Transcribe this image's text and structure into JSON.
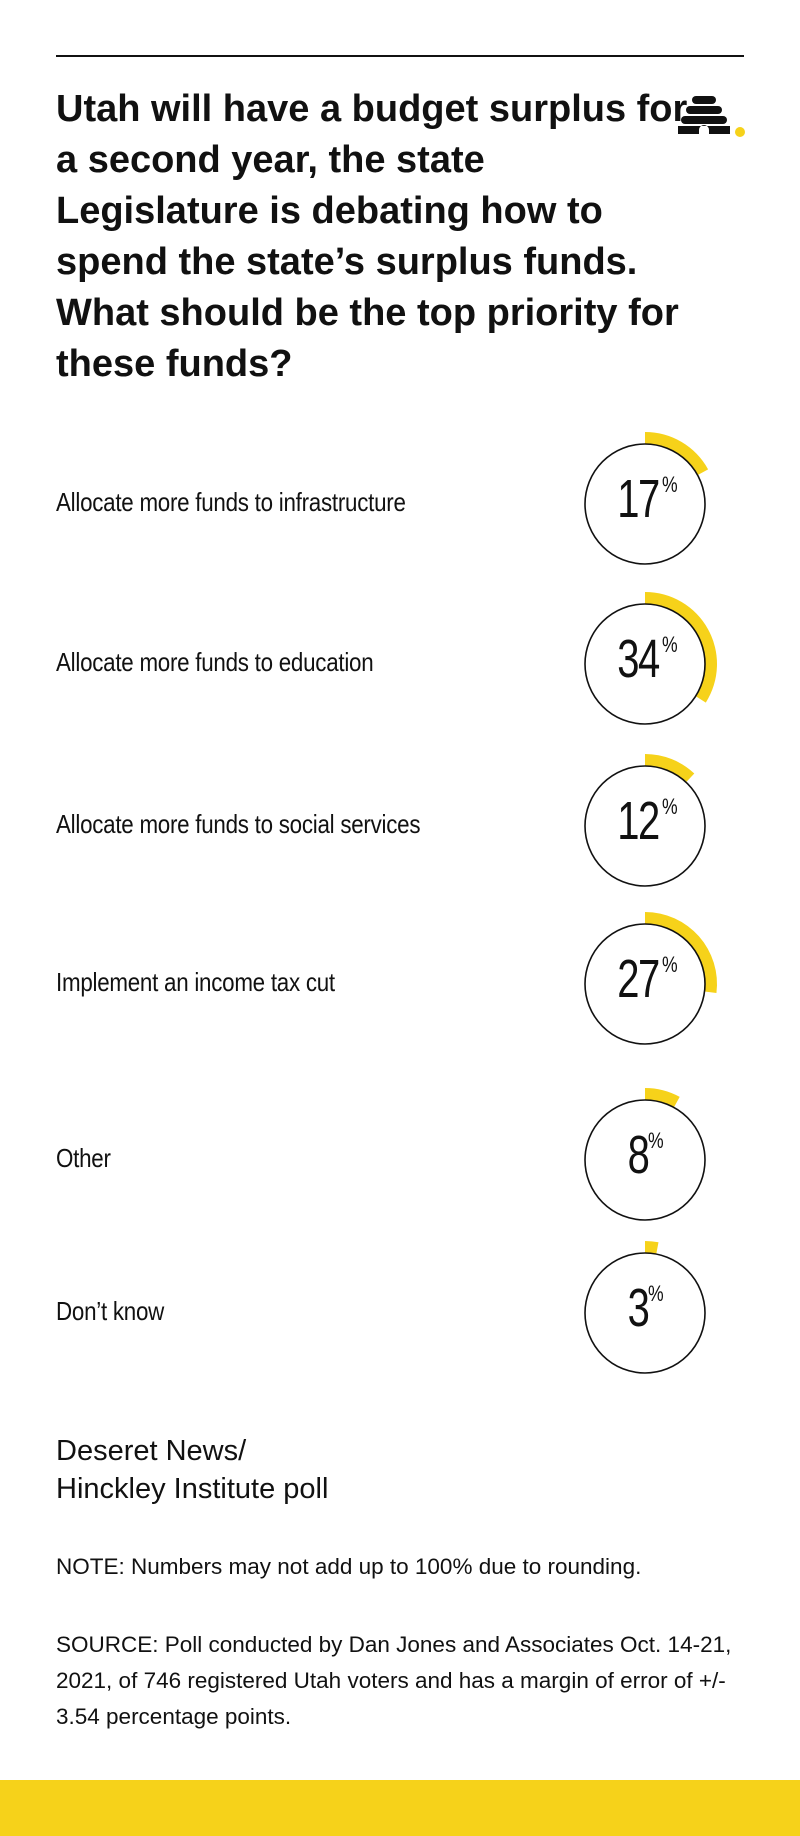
{
  "chart_data": {
    "type": "donut-list",
    "title": "Utah will have a budget surplus for a second year, the state Legislature is debating how to spend the state’s surplus funds. What should be the top priority for these funds?",
    "unit": "%",
    "categories": [
      "Allocate more funds to infrastructure",
      "Allocate more funds to education",
      "Allocate more funds to social services",
      "Implement an income tax cut",
      "Other",
      "Don’t know"
    ],
    "values": [
      17,
      34,
      12,
      27,
      8,
      3
    ],
    "colors": {
      "accent": "#F6D21A",
      "ring": "#111111"
    }
  },
  "footer": {
    "source_name": "Deseret News/\nHinckley Institute poll",
    "note": "NOTE: Numbers may not add up to 100% due to rounding.",
    "source": "SOURCE: Poll conducted by Dan Jones and Associates Oct. 14-21, 2021, of 746 registered Utah voters and has a margin of error of +/- 3.54 percentage points."
  },
  "brand": {
    "logo_icon": "beehive-icon",
    "band_color": "#F6D21A"
  }
}
